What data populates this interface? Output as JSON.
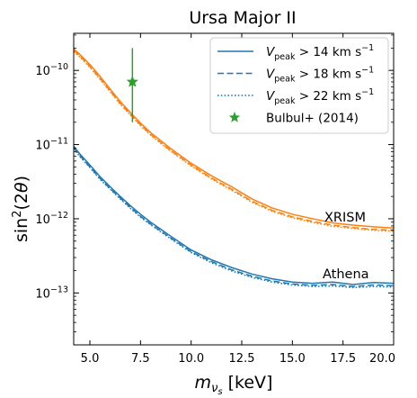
{
  "chart_data": {
    "type": "line",
    "title": "Ursa Major II",
    "xlabel": "m_{ν_s} [keV]",
    "ylabel": "sin²(2θ)",
    "xlim": [
      4.2,
      20.0
    ],
    "ylim_log10": [
      -13.7,
      -9.5
    ],
    "yscale": "log",
    "x_ticks": [
      {
        "v": 5.0,
        "label": "5.0"
      },
      {
        "v": 7.5,
        "label": "7.5"
      },
      {
        "v": 10.0,
        "label": "10.0"
      },
      {
        "v": 12.5,
        "label": "12.5"
      },
      {
        "v": 15.0,
        "label": "15.0"
      },
      {
        "v": 17.5,
        "label": "17.5"
      },
      {
        "v": 20.0,
        "label": "20.0"
      }
    ],
    "y_ticks": [
      {
        "exp": -13,
        "base": "10",
        "sup": "−13"
      },
      {
        "exp": -12,
        "base": "10",
        "sup": "−12"
      },
      {
        "exp": -11,
        "base": "10",
        "sup": "−11"
      },
      {
        "exp": -10,
        "base": "10",
        "sup": "−10"
      }
    ],
    "colors": {
      "xrism": "#ff7f0e",
      "athena": "#1f77b4",
      "bulbul": "#2ca02c",
      "legend_line": "#1f77b4"
    },
    "legend": {
      "placement": "top-right",
      "entries": [
        {
          "style": "solid",
          "prefix": "V",
          "sub": "peak",
          "text": " > 14 km s",
          "sup": "−1"
        },
        {
          "style": "dashed",
          "prefix": "V",
          "sub": "peak",
          "text": " > 18 km s",
          "sup": "−1"
        },
        {
          "style": "dotted",
          "prefix": "V",
          "sub": "peak",
          "text": " > 22 km s",
          "sup": "−1"
        },
        {
          "style": "star",
          "label": "Bulbul+ (2014)"
        }
      ]
    },
    "curve_labels": {
      "xrism": "XRISM",
      "athena": "Athena"
    },
    "x": [
      4.2,
      4.5,
      5.0,
      5.5,
      6.0,
      6.5,
      7.0,
      7.5,
      8.0,
      9.0,
      10.0,
      11.0,
      12.0,
      13.0,
      14.0,
      15.0,
      16.0,
      17.0,
      18.0,
      19.0,
      20.0
    ],
    "series": [
      {
        "group": "xrism",
        "style": "solid",
        "values": [
          1.95e-10,
          1.65e-10,
          1.2e-10,
          8.3e-11,
          5.6e-11,
          3.8e-11,
          2.7e-11,
          1.95e-11,
          1.45e-11,
          8.8e-12,
          5.6e-12,
          3.8e-12,
          2.7e-12,
          1.85e-12,
          1.4e-12,
          1.15e-12,
          1e-12,
          8.8e-13,
          8.2e-13,
          7.8e-13,
          7.5e-13
        ]
      },
      {
        "group": "xrism",
        "style": "dashed",
        "values": [
          1.85e-10,
          1.57e-10,
          1.13e-10,
          7.8e-11,
          5.3e-11,
          3.6e-11,
          2.55e-11,
          1.85e-11,
          1.37e-11,
          8.3e-12,
          5.3e-12,
          3.55e-12,
          2.5e-12,
          1.72e-12,
          1.3e-12,
          1.06e-12,
          9.2e-13,
          8.2e-13,
          7.6e-13,
          7.2e-13,
          7e-13
        ]
      },
      {
        "group": "xrism",
        "style": "dotted",
        "values": [
          1.8e-10,
          1.52e-10,
          1.1e-10,
          7.6e-11,
          5.15e-11,
          3.5e-11,
          2.5e-11,
          1.8e-11,
          1.34e-11,
          8.1e-12,
          5.15e-12,
          3.45e-12,
          2.42e-12,
          1.67e-12,
          1.26e-12,
          1.03e-12,
          8.9e-13,
          7.9e-13,
          7.4e-13,
          7e-13,
          6.8e-13
        ]
      },
      {
        "group": "athena",
        "style": "solid",
        "values": [
          9.5e-12,
          7.5e-12,
          5.3e-12,
          3.7e-12,
          2.7e-12,
          2e-12,
          1.5e-12,
          1.15e-12,
          9e-13,
          5.8e-13,
          3.8e-13,
          2.8e-13,
          2.2e-13,
          1.8e-13,
          1.55e-13,
          1.4e-13,
          1.35e-13,
          1.4e-13,
          1.3e-13,
          1.38e-13,
          1.35e-13
        ]
      },
      {
        "group": "athena",
        "style": "dashed",
        "values": [
          9e-12,
          7.1e-12,
          5e-12,
          3.5e-12,
          2.55e-12,
          1.9e-12,
          1.42e-12,
          1.08e-12,
          8.5e-13,
          5.5e-13,
          3.6e-13,
          2.65e-13,
          2.05e-13,
          1.68e-13,
          1.45e-13,
          1.32e-13,
          1.27e-13,
          1.3e-13,
          1.22e-13,
          1.28e-13,
          1.25e-13
        ]
      },
      {
        "group": "athena",
        "style": "dotted",
        "values": [
          8.8e-12,
          6.9e-12,
          4.9e-12,
          3.4e-12,
          2.5e-12,
          1.85e-12,
          1.38e-12,
          1.05e-12,
          8.3e-13,
          5.35e-13,
          3.5e-13,
          2.55e-13,
          1.98e-13,
          1.62e-13,
          1.4e-13,
          1.28e-13,
          1.22e-13,
          1.24e-13,
          1.18e-13,
          1.22e-13,
          1.2e-13
        ]
      }
    ],
    "bulbul": {
      "x": 7.1,
      "y": 7e-11,
      "y_low": 2e-11,
      "y_high": 2e-10
    }
  }
}
